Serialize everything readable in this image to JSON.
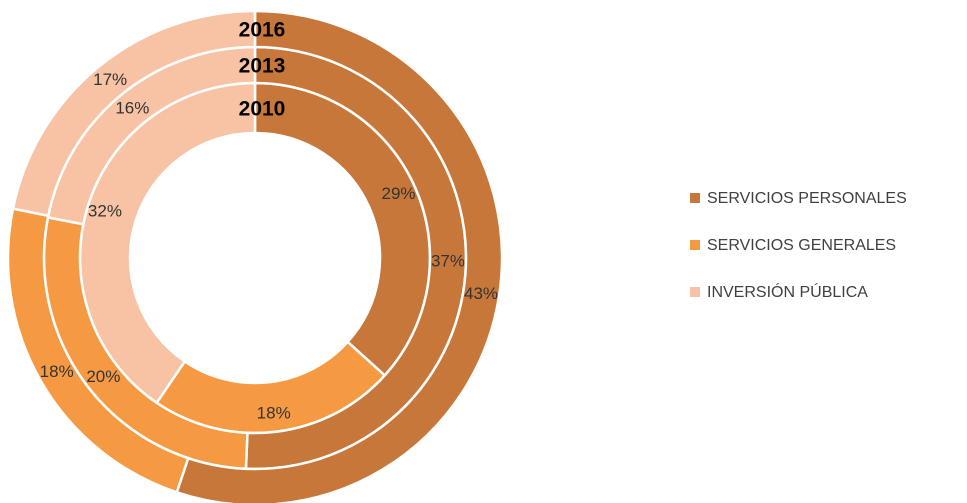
{
  "chart_data": {
    "type": "donut",
    "categories": [
      "SERVICIOS PERSONALES",
      "SERVICIOS GENERALES",
      "INVERSIÓN PÚBLICA"
    ],
    "colors": [
      "#c8773a",
      "#f59a42",
      "#f7c3a4"
    ],
    "series": [
      {
        "name": "2010",
        "values": [
          29,
          18,
          32
        ],
        "value_labels": [
          "29%",
          "18%",
          "32%"
        ]
      },
      {
        "name": "2013",
        "values": [
          37,
          20,
          16
        ],
        "value_labels": [
          "37%",
          "20%",
          "16%"
        ]
      },
      {
        "name": "2016",
        "values": [
          43,
          18,
          17
        ],
        "value_labels": [
          "43%",
          "18%",
          "17%"
        ]
      }
    ],
    "legend": "right"
  }
}
